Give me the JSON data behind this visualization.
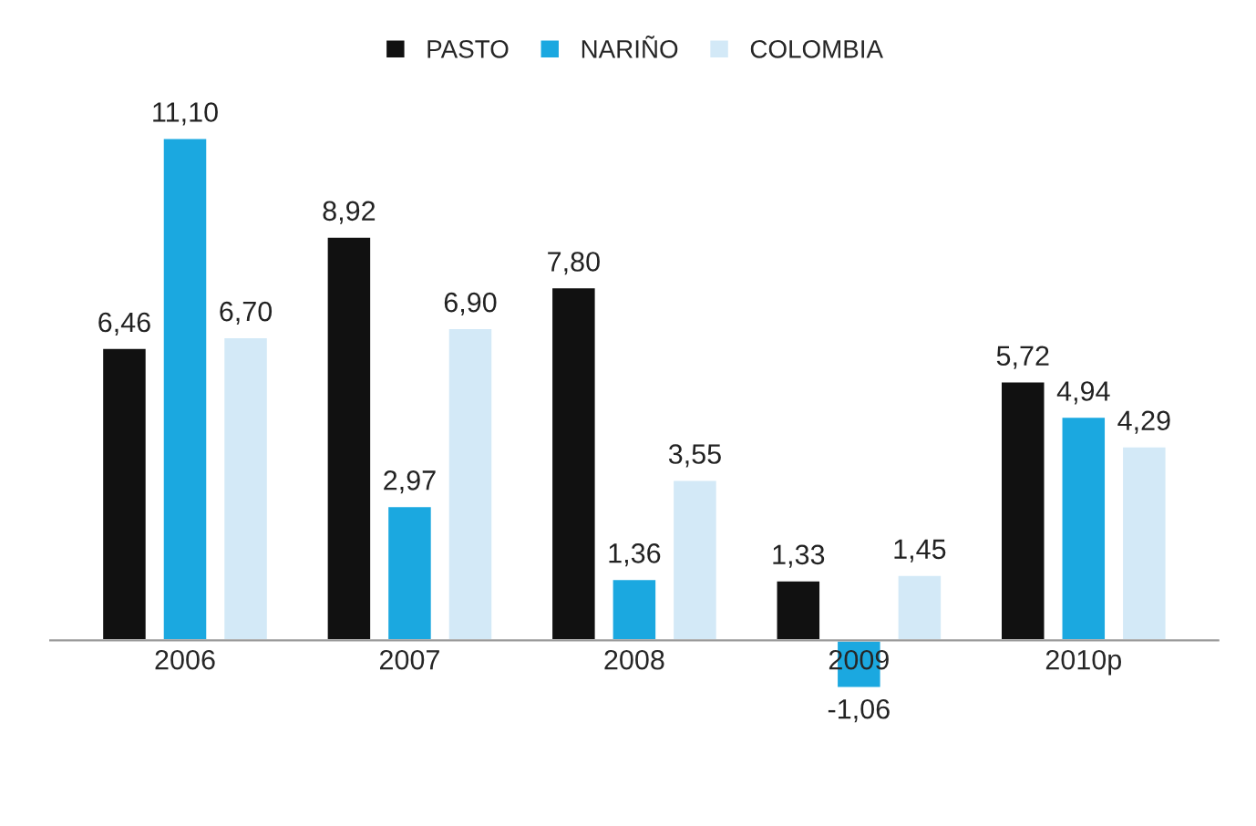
{
  "chart_data": {
    "type": "bar",
    "categories": [
      "2006",
      "2007",
      "2008",
      "2009",
      "2010p"
    ],
    "series": [
      {
        "name": "PASTO",
        "color": "#111111",
        "values": [
          6.46,
          8.92,
          7.8,
          1.33,
          5.72
        ],
        "value_labels": [
          "6,46",
          "8,92",
          "7,80",
          "1,33",
          "5,72"
        ]
      },
      {
        "name": "NARIÑO",
        "color": "#1ba8e0",
        "values": [
          11.1,
          2.97,
          1.36,
          -1.06,
          4.94
        ],
        "value_labels": [
          "11,10",
          "2,97",
          "1,36",
          "-1,06",
          "4,94"
        ]
      },
      {
        "name": "COLOMBIA",
        "color": "#d3e9f7",
        "values": [
          6.7,
          6.9,
          3.55,
          1.45,
          4.29
        ],
        "value_labels": [
          "6,70",
          "6,90",
          "3,55",
          "1,45",
          "4,29"
        ]
      }
    ],
    "tick_labels": "x",
    "legend": "top",
    "grid": false
  }
}
